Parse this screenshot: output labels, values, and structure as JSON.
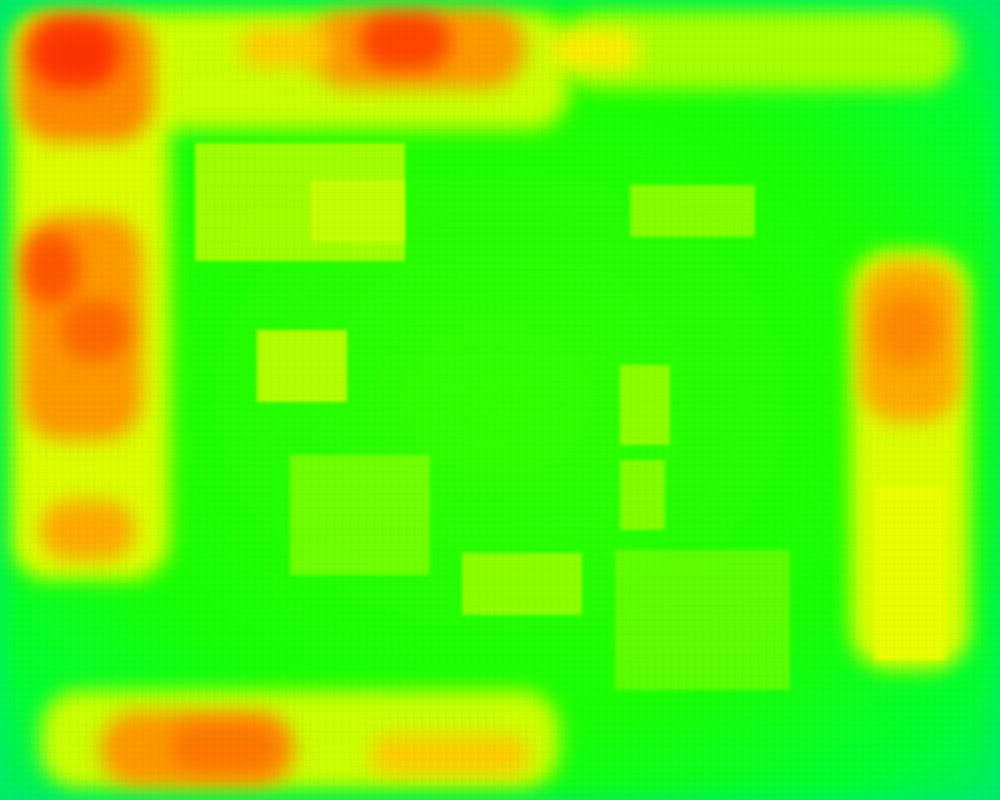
{
  "heatmap": {
    "type": "heatmap",
    "colors": {
      "low": "#00ff55",
      "mid": "#66ff00",
      "high_mid": "#ffff00",
      "high": "#ff8800",
      "max": "#ff2200"
    }
  }
}
